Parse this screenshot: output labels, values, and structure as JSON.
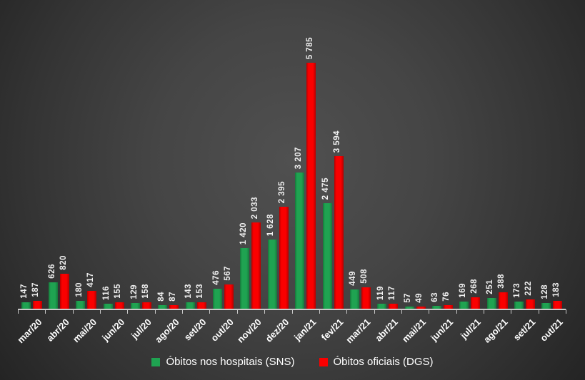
{
  "chart_data": {
    "type": "bar",
    "title": "",
    "xlabel": "",
    "ylabel": "",
    "categories": [
      "mar/20",
      "abr/20",
      "mai/20",
      "jun/20",
      "jul/20",
      "ago/20",
      "set/20",
      "out/20",
      "nov/20",
      "dez/20",
      "jan/21",
      "fev/21",
      "mar/21",
      "abr/21",
      "mai/21",
      "jun/21",
      "jul/21",
      "ago/21",
      "set/21",
      "out/21"
    ],
    "series": [
      {
        "name": "Óbitos nos hospitais (SNS)",
        "color": "#1FA351",
        "values": [
          147,
          626,
          180,
          116,
          129,
          84,
          143,
          476,
          1420,
          1628,
          3207,
          2475,
          449,
          119,
          57,
          63,
          169,
          251,
          173,
          128
        ]
      },
      {
        "name": "Óbitos oficiais (DGS)",
        "color": "#FA0000",
        "values": [
          187,
          820,
          417,
          155,
          158,
          87,
          153,
          567,
          2033,
          2395,
          5785,
          3594,
          508,
          117,
          49,
          76,
          268,
          388,
          222,
          183
        ]
      }
    ],
    "ylim": [
      0,
      5785
    ],
    "grid": false,
    "y_axis_visible": false,
    "value_labels": true,
    "value_label_rotation": "vertical",
    "category_label_rotation": 45,
    "number_format": "space-thousands",
    "legend_position": "bottom",
    "axis_color": "#c9c9c9",
    "text_color": "#ffffff",
    "background": "#3d3d3d"
  }
}
